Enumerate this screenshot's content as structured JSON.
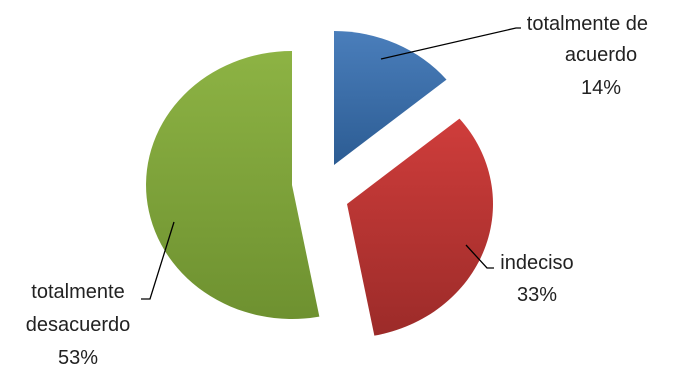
{
  "chart_data": {
    "type": "pie",
    "title": "",
    "categories": [
      "totalmente de acuerdo",
      "indeciso",
      "totalmente desacuerdo"
    ],
    "values": [
      14,
      33,
      53
    ],
    "exploded": true,
    "slices": [
      {
        "category_lines": [
          "totalmente de",
          "acuerdo"
        ],
        "value": 14,
        "value_label": "14%",
        "color": "#4a7ebb",
        "color_dark": "#2c5c93"
      },
      {
        "category_lines": [
          "indeciso"
        ],
        "value": 33,
        "value_label": "33%",
        "color": "#cf3d3b",
        "color_dark": "#9c2b29"
      },
      {
        "category_lines": [
          "totalmente",
          "desacuerdo"
        ],
        "value": 53,
        "value_label": "53%",
        "color": "#8db344",
        "color_dark": "#6e9130"
      }
    ]
  }
}
